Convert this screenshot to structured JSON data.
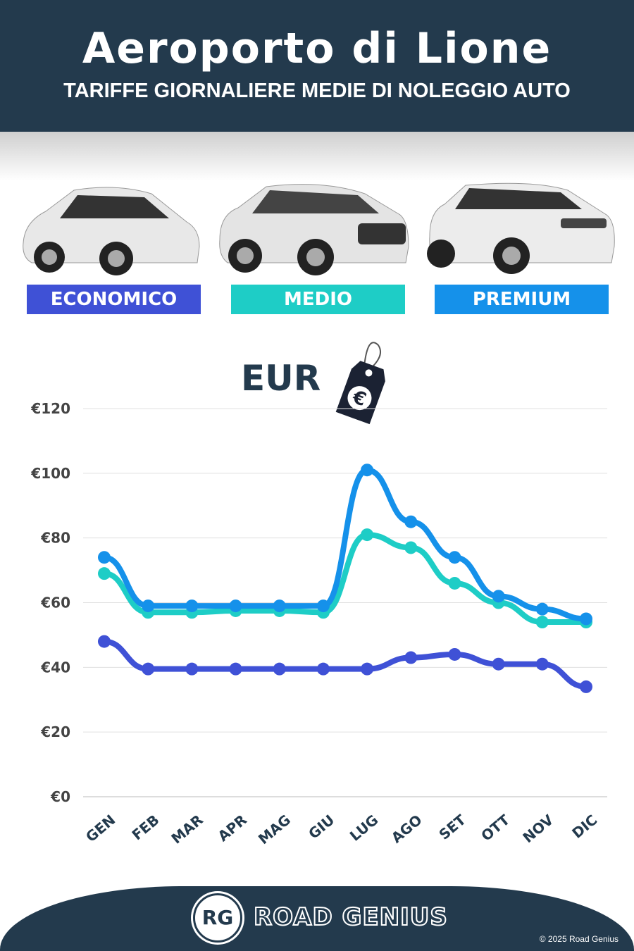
{
  "header": {
    "title": "Aeroporto di Lione",
    "subtitle": "TARIFFE GIORNALIERE MEDIE DI NOLEGGIO AUTO"
  },
  "categories": [
    {
      "label": "ECONOMICO",
      "color": "#3f51d6"
    },
    {
      "label": "MEDIO",
      "color": "#1ecdc6"
    },
    {
      "label": "PREMIUM",
      "color": "#1591ea"
    }
  ],
  "currency": {
    "label": "EUR",
    "icon": "price-tag-euro-icon",
    "symbol": "€"
  },
  "chart_data": {
    "type": "line",
    "categories": [
      "GEN",
      "FEB",
      "MAR",
      "APR",
      "MAG",
      "GIU",
      "LUG",
      "AGO",
      "SET",
      "OTT",
      "NOV",
      "DIC"
    ],
    "series": [
      {
        "name": "ECONOMICO",
        "color": "#3f51d6",
        "values": [
          48,
          39.5,
          39.5,
          39.5,
          39.5,
          39.5,
          39.5,
          43,
          44,
          41,
          41,
          34
        ]
      },
      {
        "name": "MEDIO",
        "color": "#1ecdc6",
        "values": [
          69,
          57,
          57,
          57.5,
          57.5,
          57,
          81,
          77,
          66,
          60,
          54,
          54
        ]
      },
      {
        "name": "PREMIUM",
        "color": "#1591ea",
        "values": [
          74,
          59,
          59,
          59,
          59,
          59,
          101,
          85,
          74,
          62,
          58,
          55
        ]
      }
    ],
    "yticks": [
      "€0",
      "€20",
      "€40",
      "€60",
      "€80",
      "€100",
      "€120"
    ],
    "ylim": [
      0,
      120
    ],
    "grid": true
  },
  "footer": {
    "brand": "ROAD GENIUS",
    "logo": "RG",
    "copyright": "© 2025 Road Genius"
  }
}
